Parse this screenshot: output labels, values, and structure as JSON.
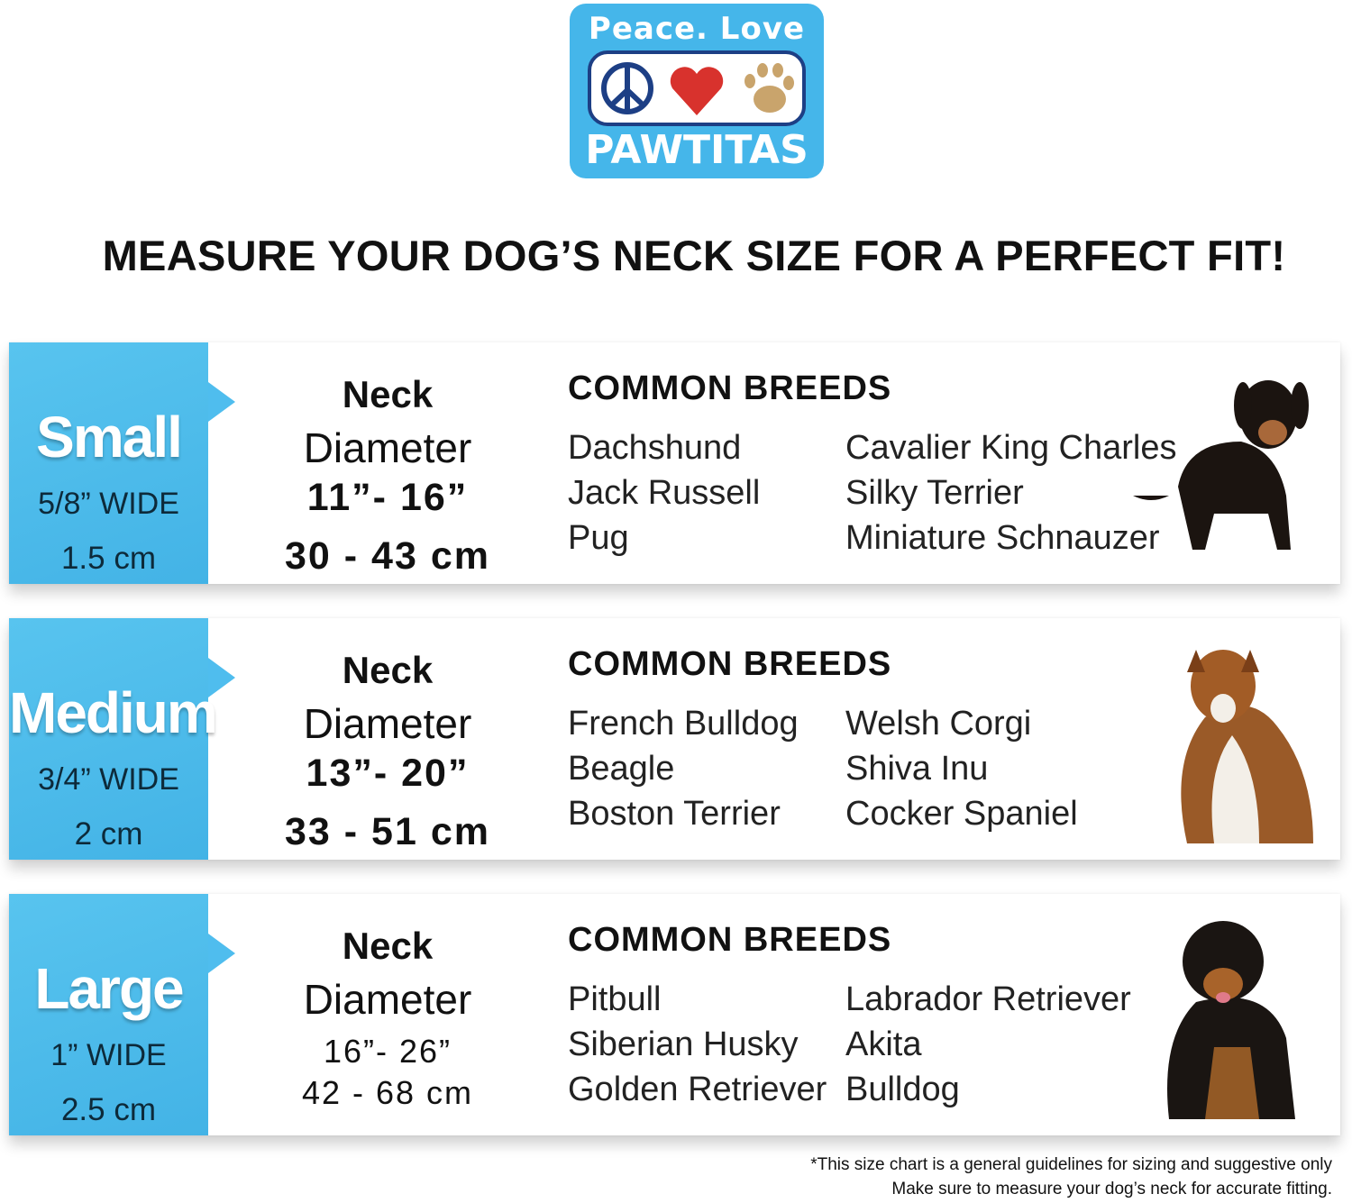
{
  "logo": {
    "line1": "Peace. Love &",
    "line2": "PAWTITAS",
    "icons": [
      "peace-sign-icon",
      "heart-icon",
      "paw-icon"
    ],
    "colors": {
      "bg": "#45b6ea",
      "peace": "#1d3f85",
      "heart": "#d8322d",
      "paw": "#c9a46c"
    }
  },
  "headline": "MEASURE YOUR DOG’S NECK SIZE FOR A PERFECT FIT!",
  "accent": "#4fbdee",
  "sizes": [
    {
      "size": "Small",
      "width": "5/8” WIDE",
      "width_cm": "1.5 cm",
      "neck": "Neck",
      "diameter": "Diameter",
      "inches": "11”- 16”",
      "cm": "30 - 43 cm",
      "breeds_title": "COMMON BREEDS",
      "breeds_col1": [
        "Dachshund",
        "Jack Russell",
        "Pug"
      ],
      "breeds_col2": [
        "Cavalier King Charles",
        "Silky Terrier",
        "Miniature Schnauzer"
      ]
    },
    {
      "size": "Medium",
      "width": "3/4” WIDE",
      "width_cm": "2 cm",
      "neck": "Neck",
      "diameter": "Diameter",
      "inches": "13”- 20”",
      "cm": "33 - 51 cm",
      "breeds_title": "COMMON BREEDS",
      "breeds_col1": [
        "French Bulldog",
        "Beagle",
        "Boston Terrier"
      ],
      "breeds_col2": [
        "Welsh Corgi",
        "Shiva Inu",
        "Cocker Spaniel"
      ]
    },
    {
      "size": "Large",
      "width": "1” WIDE",
      "width_cm": "2.5 cm",
      "neck": "Neck",
      "diameter": "Diameter",
      "inches": "16”- 26”",
      "cm": "42 - 68 cm",
      "breeds_title": "COMMON BREEDS",
      "breeds_col1": [
        "Pitbull",
        "Siberian Husky",
        "Golden Retriever"
      ],
      "breeds_col2": [
        "Labrador Retriever",
        "Akita",
        "Bulldog"
      ]
    }
  ],
  "footnote": {
    "line1": "*This size chart is a general guidelines for sizing and suggestive only",
    "line2": "Make sure to measure your dog’s neck for accurate fitting."
  }
}
